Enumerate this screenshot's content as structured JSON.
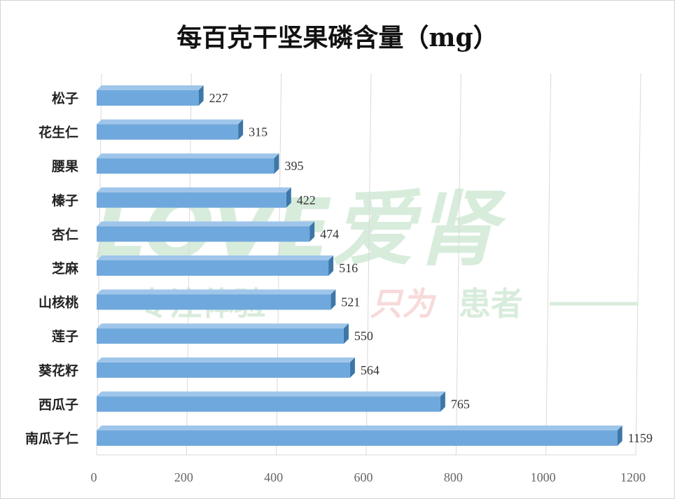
{
  "watermark": {
    "brand": "LOVE爱肾",
    "slogan_left": "专注体验",
    "slogan_script": "只为",
    "slogan_right": "患者"
  },
  "colors": {
    "bar_front": "#6fa8dc",
    "bar_top": "#9fc6ea",
    "bar_side": "#3d77a8",
    "grid": "#d9d9d9",
    "watermark_green": "#d8ecdc",
    "watermark_red": "#f7dada"
  },
  "chart_data": {
    "type": "bar",
    "orientation": "horizontal",
    "title": "每百克干坚果磷含量（mg）",
    "xlabel": "",
    "ylabel": "",
    "categories": [
      "松子",
      "花生仁",
      "腰果",
      "榛子",
      "杏仁",
      "芝麻",
      "山核桃",
      "莲子",
      "葵花籽",
      "西瓜子",
      "南瓜子仁"
    ],
    "values": [
      227,
      315,
      395,
      422,
      474,
      516,
      521,
      550,
      564,
      765,
      1159
    ],
    "xlim": [
      0,
      1200
    ],
    "xticks": [
      0,
      200,
      400,
      600,
      800,
      1000,
      1200
    ],
    "grid": true,
    "legend": "none",
    "style": "3d"
  }
}
